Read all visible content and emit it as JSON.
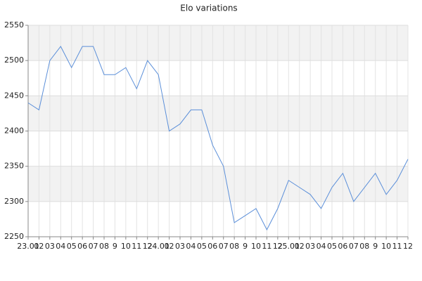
{
  "chart_data": {
    "type": "line",
    "title": "Elo variations",
    "categories": [
      "23.01",
      "02",
      "03",
      "04",
      "05",
      "06",
      "07",
      "08",
      "9",
      "10",
      "11",
      "12",
      "24.01",
      "02",
      "03",
      "04",
      "05",
      "06",
      "07",
      "08",
      "9",
      "10",
      "11",
      "12",
      "25.01",
      "02",
      "03",
      "04",
      "05",
      "06",
      "07",
      "08",
      "9",
      "10",
      "11",
      "12"
    ],
    "series": [
      {
        "name": "Elo",
        "color": "#5b8fd9",
        "values": [
          2440,
          2430,
          2500,
          2520,
          2490,
          2520,
          2520,
          2480,
          2480,
          2490,
          2460,
          2500,
          2480,
          2400,
          2410,
          2430,
          2430,
          2380,
          2350,
          2270,
          2280,
          2290,
          2260,
          2290,
          2330,
          2320,
          2310,
          2290,
          2320,
          2340,
          2300,
          2320,
          2340,
          2310,
          2330,
          2360
        ]
      }
    ],
    "ylim": [
      2250,
      2550
    ],
    "yticks": [
      2250,
      2300,
      2350,
      2400,
      2450,
      2500,
      2550
    ],
    "grid": true
  }
}
